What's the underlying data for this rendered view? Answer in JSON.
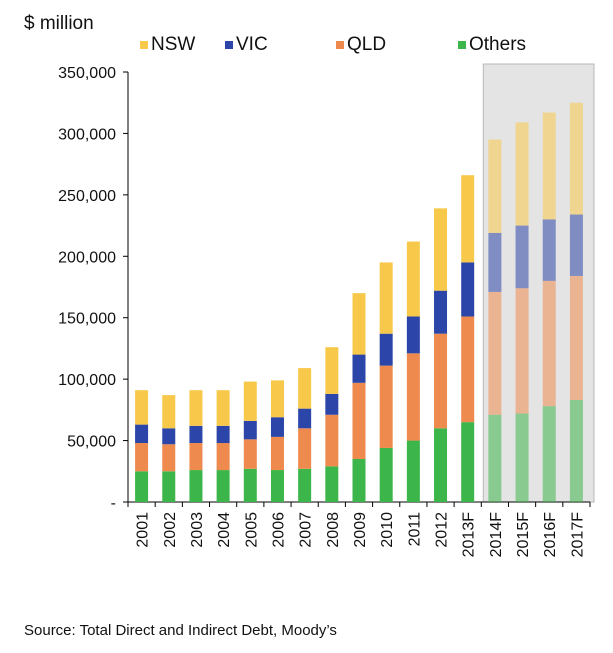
{
  "chart_data": {
    "type": "bar",
    "stacked": true,
    "ylabel": "$ million",
    "categories": [
      "2001",
      "2002",
      "2003",
      "2004",
      "2005",
      "2006",
      "2007",
      "2008",
      "2009",
      "2010",
      "2011",
      "2012",
      "2013F",
      "2014F",
      "2015F",
      "2016F",
      "2017F"
    ],
    "forecast_shaded_from": "2014F",
    "series": [
      {
        "name": "Others",
        "color": "#3cb54a",
        "values": [
          25000,
          25000,
          26000,
          26000,
          27000,
          26000,
          27000,
          29000,
          35000,
          44000,
          50000,
          60000,
          65000,
          71000,
          72000,
          78000,
          83000
        ]
      },
      {
        "name": "QLD",
        "color": "#ef8a4e",
        "values": [
          23000,
          22000,
          22000,
          22000,
          24000,
          27000,
          33000,
          42000,
          62000,
          67000,
          71000,
          77000,
          86000,
          100000,
          102000,
          102000,
          101000
        ]
      },
      {
        "name": "VIC",
        "color": "#2b46a8",
        "values": [
          15000,
          13000,
          14000,
          14000,
          15000,
          16000,
          16000,
          17000,
          23000,
          26000,
          30000,
          35000,
          44000,
          48000,
          51000,
          50000,
          50000
        ]
      },
      {
        "name": "NSW",
        "color": "#f7c84a",
        "values": [
          28000,
          27000,
          29000,
          29000,
          32000,
          30000,
          33000,
          38000,
          50000,
          58000,
          61000,
          67000,
          71000,
          76000,
          84000,
          87000,
          91000
        ]
      }
    ],
    "legend_order": [
      "NSW",
      "VIC",
      "QLD",
      "Others"
    ],
    "ylim": [
      0,
      350000
    ],
    "yticks": [
      0,
      50000,
      100000,
      150000,
      200000,
      250000,
      300000,
      350000
    ],
    "ytick_labels": [
      "-",
      "50,000",
      "100,000",
      "150,000",
      "200,000",
      "250,000",
      "300,000",
      "350,000"
    ]
  },
  "unit_label": "$ million",
  "source": "Source: Total Direct and Indirect Debt, Moody’s"
}
